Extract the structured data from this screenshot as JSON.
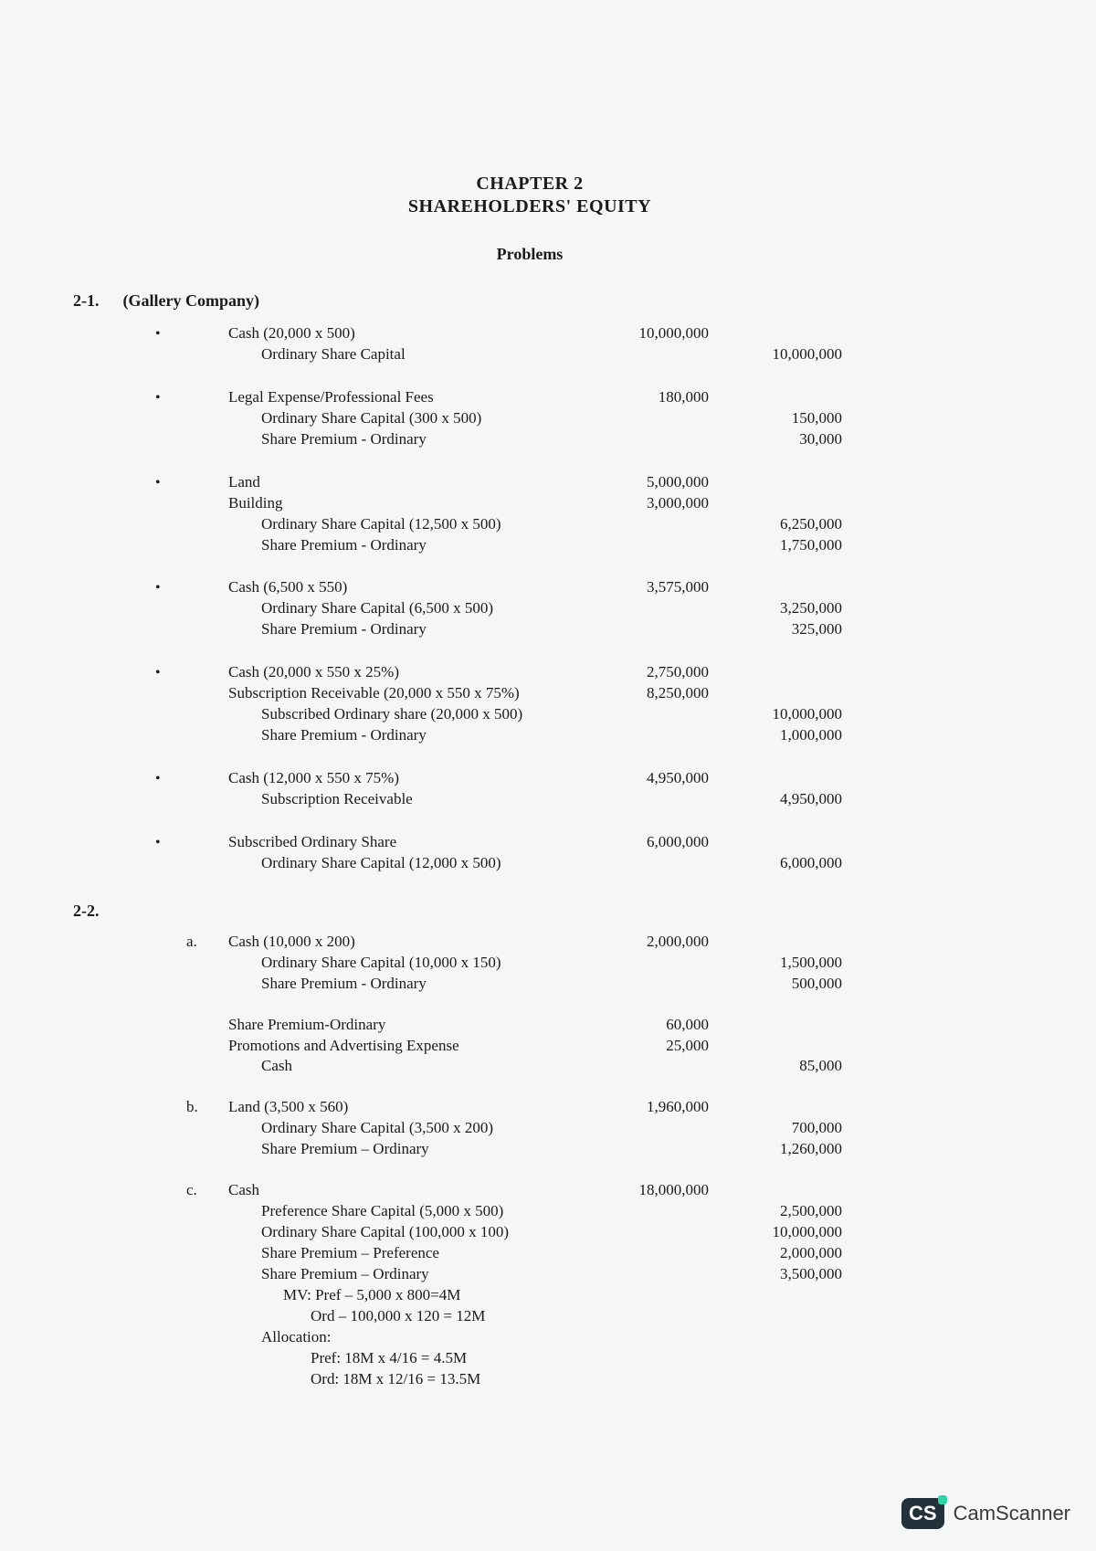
{
  "header": {
    "chapter": "CHAPTER 2",
    "title": "SHAREHOLDERS' EQUITY",
    "section": "Problems"
  },
  "problems": [
    {
      "number": "2-1.",
      "name": "(Gallery Company)",
      "entries": [
        {
          "bullet": "•",
          "lines": [
            {
              "account": "Cash (20,000 x 500)",
              "debit": "10,000,000"
            },
            {
              "account": "Ordinary Share Capital",
              "indent": 1,
              "credit": "10,000,000"
            }
          ]
        },
        {
          "bullet": "•",
          "lines": [
            {
              "account": "Legal Expense/Professional Fees",
              "debit": "180,000"
            },
            {
              "account": "Ordinary Share Capital (300 x 500)",
              "indent": 1,
              "credit": "150,000"
            },
            {
              "account": "Share Premium - Ordinary",
              "indent": 1,
              "credit": "30,000"
            }
          ]
        },
        {
          "bullet": "•",
          "lines": [
            {
              "account": "Land",
              "debit": "5,000,000"
            },
            {
              "account": "Building",
              "debit": "3,000,000"
            },
            {
              "account": "Ordinary Share Capital (12,500 x 500)",
              "indent": 1,
              "credit": "6,250,000"
            },
            {
              "account": "Share Premium - Ordinary",
              "indent": 1,
              "credit": "1,750,000"
            }
          ]
        },
        {
          "bullet": "•",
          "lines": [
            {
              "account": "Cash (6,500 x 550)",
              "debit": "3,575,000"
            },
            {
              "account": "Ordinary Share Capital (6,500 x 500)",
              "indent": 1,
              "credit": "3,250,000"
            },
            {
              "account": "Share Premium - Ordinary",
              "indent": 1,
              "credit": "325,000"
            }
          ]
        },
        {
          "bullet": "•",
          "lines": [
            {
              "account": "Cash (20,000 x 550 x 25%)",
              "debit": "2,750,000"
            },
            {
              "account": "Subscription Receivable (20,000 x 550 x 75%)",
              "debit": "8,250,000"
            },
            {
              "account": "Subscribed Ordinary share (20,000 x 500)",
              "indent": 1,
              "credit": "10,000,000"
            },
            {
              "account": "Share Premium - Ordinary",
              "indent": 1,
              "credit": "1,000,000"
            }
          ]
        },
        {
          "bullet": "•",
          "lines": [
            {
              "account": "Cash (12,000 x 550 x 75%)",
              "debit": "4,950,000"
            },
            {
              "account": "Subscription Receivable",
              "indent": 1,
              "credit": "4,950,000"
            }
          ]
        },
        {
          "bullet": "•",
          "lines": [
            {
              "account": "Subscribed Ordinary Share",
              "debit": "6,000,000"
            },
            {
              "account": "Ordinary Share Capital (12,000 x 500)",
              "indent": 1,
              "credit": "6,000,000"
            }
          ]
        }
      ]
    },
    {
      "number": "2-2.",
      "name": "",
      "entries": [
        {
          "sublabel": "a.",
          "lines": [
            {
              "account": "Cash (10,000 x 200)",
              "debit": "2,000,000"
            },
            {
              "account": "Ordinary Share Capital (10,000 x 150)",
              "indent": 1,
              "credit": "1,500,000"
            },
            {
              "account": "Share Premium - Ordinary",
              "indent": 1,
              "credit": "500,000"
            }
          ]
        },
        {
          "lines": [
            {
              "account": "Share Premium-Ordinary",
              "debit": "60,000"
            },
            {
              "account": "Promotions and Advertising Expense",
              "debit": "25,000"
            },
            {
              "account": "Cash",
              "indent": 1,
              "credit": "85,000"
            }
          ]
        },
        {
          "sublabel": "b.",
          "lines": [
            {
              "account": "Land (3,500 x 560)",
              "debit": "1,960,000"
            },
            {
              "account": "Ordinary Share Capital (3,500 x 200)",
              "indent": 1,
              "credit": "700,000"
            },
            {
              "account": "Share Premium – Ordinary",
              "indent": 1,
              "credit": "1,260,000"
            }
          ]
        },
        {
          "sublabel": "c.",
          "lines": [
            {
              "account": "Cash",
              "debit": "18,000,000"
            },
            {
              "account": "Preference Share Capital (5,000 x 500)",
              "indent": 1,
              "credit": "2,500,000"
            },
            {
              "account": "Ordinary Share Capital (100,000 x 100)",
              "indent": 1,
              "credit": "10,000,000"
            },
            {
              "account": "Share Premium – Preference",
              "indent": 1,
              "credit": "2,000,000"
            },
            {
              "account": "Share Premium – Ordinary",
              "indent": 1,
              "credit": "3,500,000"
            },
            {
              "account": "MV:  Pref – 5,000 x 800=4M",
              "indent": 2
            },
            {
              "account": "Ord – 100,000 x 120 = 12M",
              "indent": 3
            },
            {
              "account": "Allocation:",
              "indent": 1
            },
            {
              "account": "Pref:  18M x 4/16 = 4.5M",
              "indent": 3
            },
            {
              "account": "Ord:  18M x 12/16 = 13.5M",
              "indent": 3
            }
          ]
        }
      ]
    }
  ],
  "watermark": {
    "badge": "CS",
    "text": "CamScanner"
  }
}
